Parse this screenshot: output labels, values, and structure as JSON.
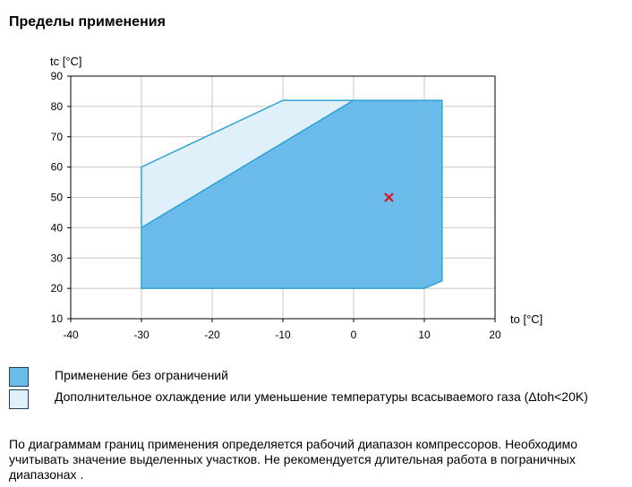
{
  "page": {
    "title": "Пределы применения"
  },
  "chart_data": {
    "type": "area",
    "xlabel": "to [°C]",
    "ylabel": "tc [°C]",
    "xlim": [
      -40,
      20
    ],
    "ylim": [
      10,
      90
    ],
    "xticks": [
      -40,
      -30,
      -20,
      -10,
      0,
      10,
      20
    ],
    "yticks": [
      10,
      20,
      30,
      40,
      50,
      60,
      70,
      80,
      90
    ],
    "grid": true,
    "colors": {
      "unrestricted": "#6bbbea",
      "additional": "#dff0fb",
      "outline": "#2fa3d8",
      "marker": "#e0141e"
    },
    "regions": [
      {
        "name": "additional",
        "points": [
          [
            -30,
            40
          ],
          [
            -30,
            60
          ],
          [
            -10,
            82
          ],
          [
            0,
            82
          ]
        ]
      },
      {
        "name": "unrestricted",
        "points": [
          [
            -30,
            20
          ],
          [
            -30,
            40
          ],
          [
            0,
            82
          ],
          [
            12.5,
            82
          ],
          [
            12.5,
            22.5
          ],
          [
            10,
            20
          ]
        ]
      }
    ],
    "marker": {
      "x": 5,
      "y": 50,
      "symbol": "x"
    }
  },
  "legend": {
    "items": [
      {
        "label": "Применение без ограничений",
        "color": "#6bbbea"
      },
      {
        "label": "Дополнительное охлаждение или уменьшение температуры всасываемого газа (Δtoh<20K)",
        "color": "#dff0fb"
      }
    ]
  },
  "footnote": "По диаграммам границ применения определяется рабочий диапазон компрессоров. Необходимо учитывать значение выделенных участков. Не рекомендуется длительная работа в пограничных диапазонах ."
}
